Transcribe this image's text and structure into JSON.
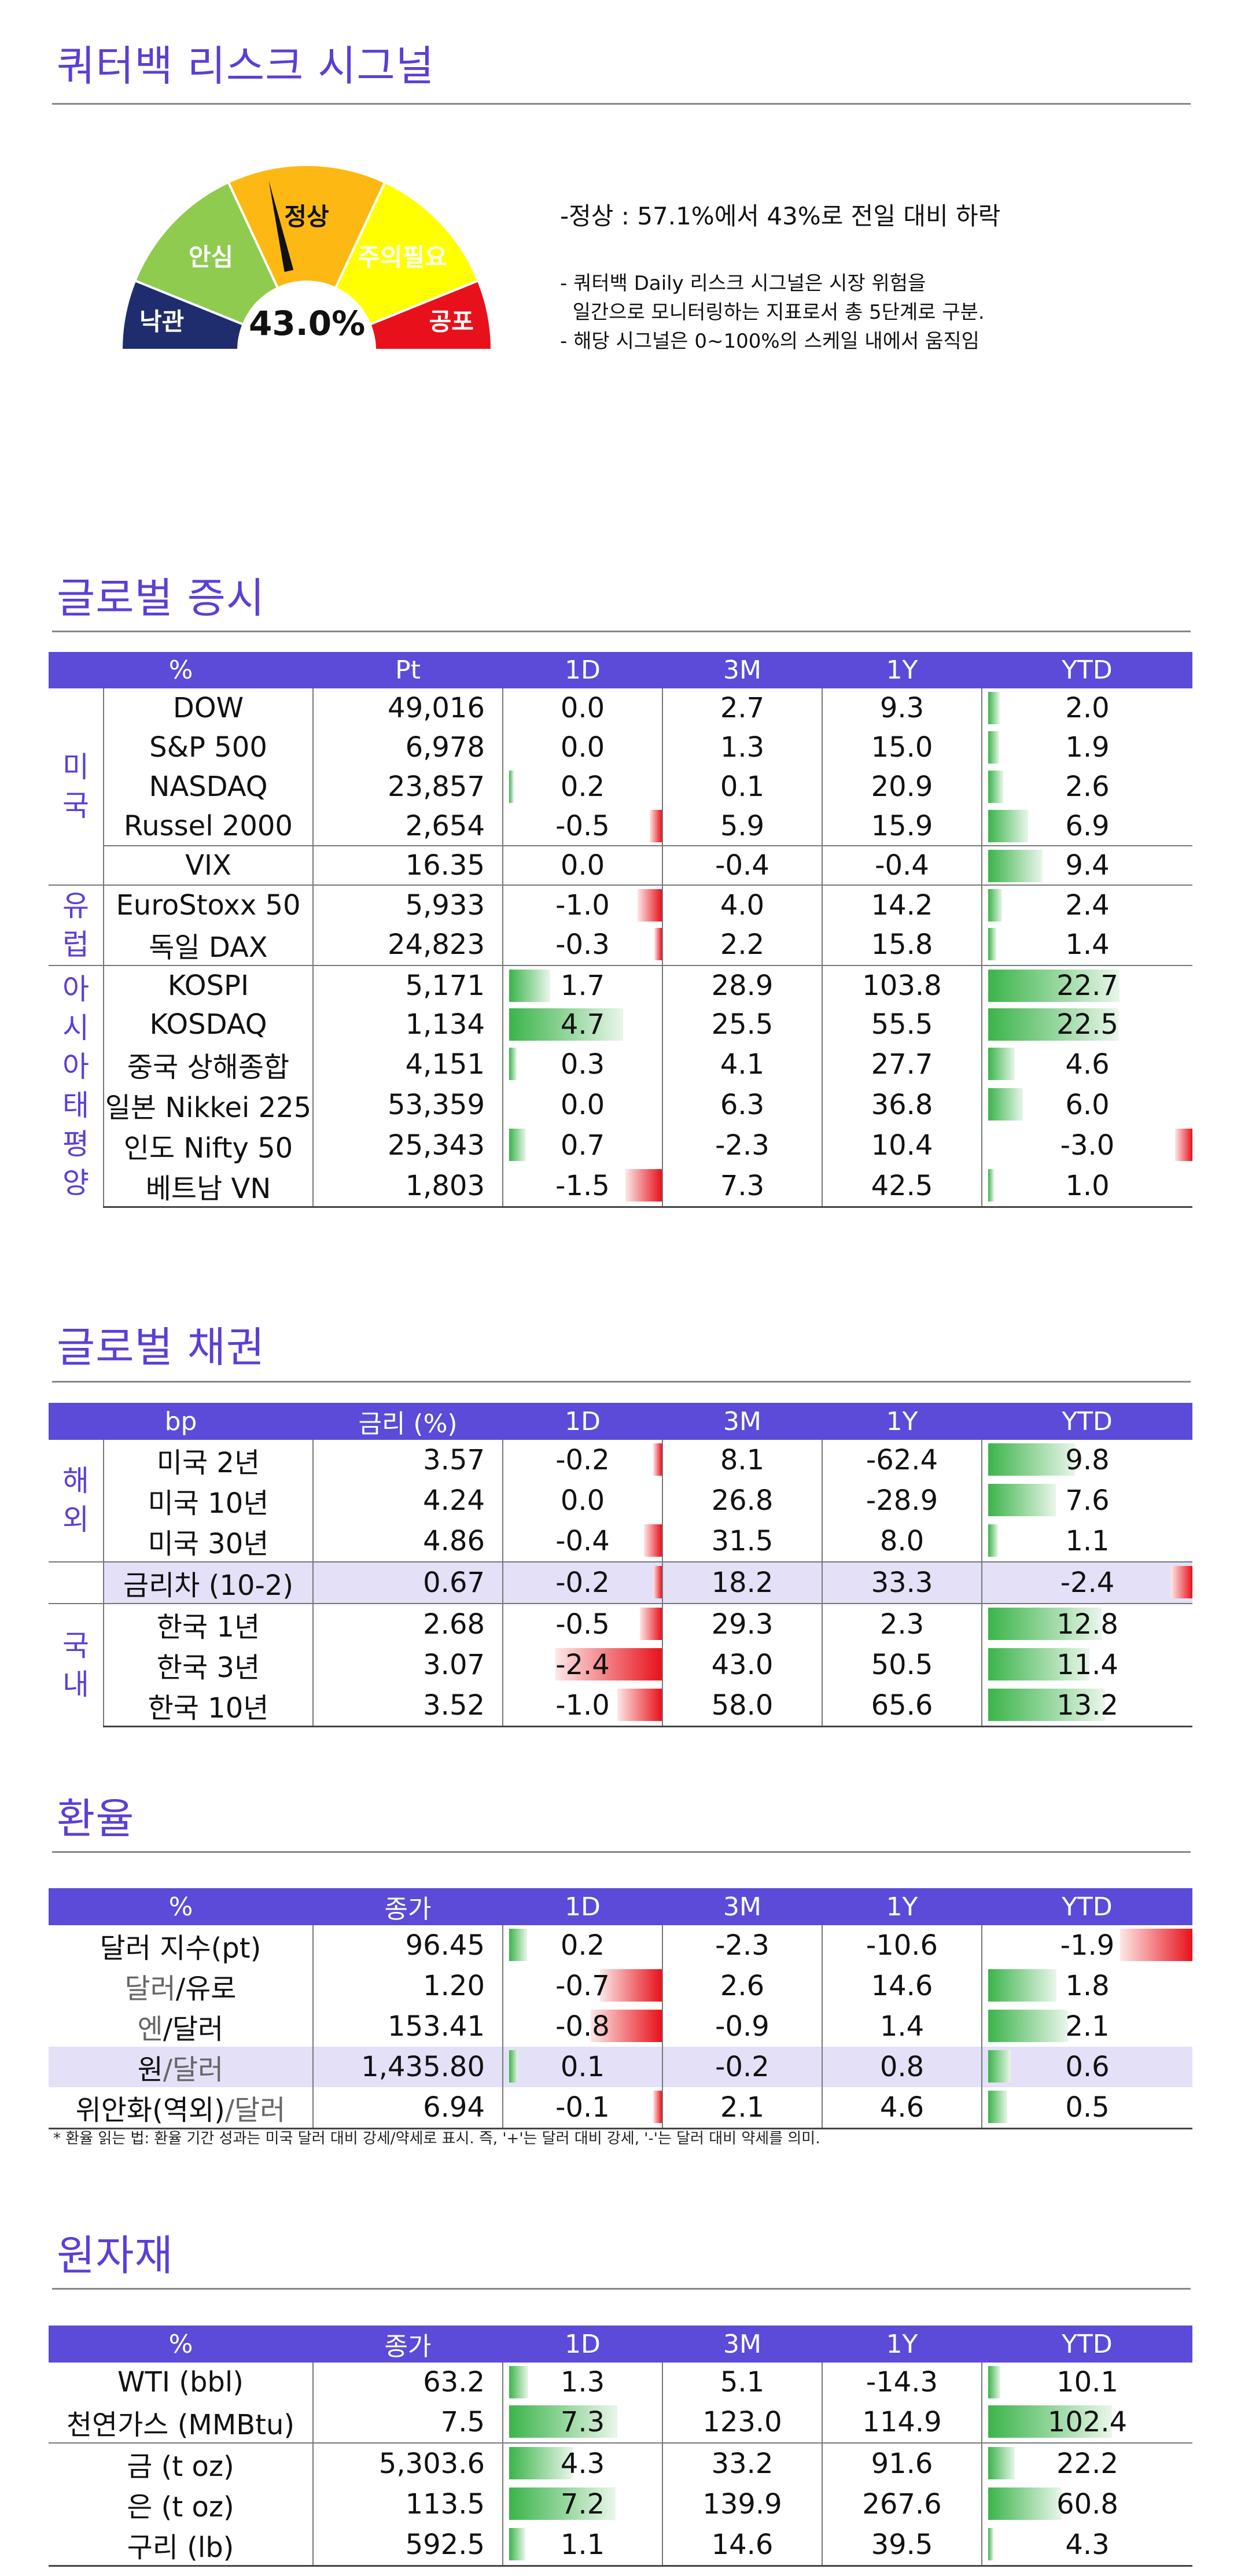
{
  "signal": {
    "title": "쿼터백 리스크 시그널",
    "value": "43.0%",
    "levels": [
      "낙관",
      "안심",
      "정상",
      "주의필요",
      "공포"
    ],
    "lead": "-정상 : 57.1%에서 43%로 전일 대비 하락",
    "notes": [
      "- 쿼터백 Daily 리스크 시그널은 시장 위험을",
      "  일간으로 모니터링하는 지표로서 총 5단계로 구분.",
      "- 해당 시그널은 0~100%의 스케일 내에서 움직임"
    ],
    "colors": {
      "낙관": "#1f2d6e",
      "안심": "#8fcb4f",
      "정상": "#fdb813",
      "주의필요": "#ffff00",
      "공포": "#e8111b"
    }
  },
  "equity": {
    "title": "글로벌 증시",
    "headers": [
      "%",
      "Pt",
      "1D",
      "3M",
      "1Y",
      "YTD"
    ],
    "groups": [
      {
        "label": [
          "미",
          "국"
        ],
        "rows": [
          {
            "name": "DOW",
            "pt": "49,016",
            "d1": "0.0",
            "m3": "2.7",
            "y1": "9.3",
            "ytd": "2.0"
          },
          {
            "name": "S&P 500",
            "pt": "6,978",
            "d1": "0.0",
            "m3": "1.3",
            "y1": "15.0",
            "ytd": "1.9"
          },
          {
            "name": "NASDAQ",
            "pt": "23,857",
            "d1": "0.2",
            "m3": "0.1",
            "y1": "20.9",
            "ytd": "2.6"
          },
          {
            "name": "Russel 2000",
            "pt": "2,654",
            "d1": "-0.5",
            "m3": "5.9",
            "y1": "15.9",
            "ytd": "6.9"
          },
          {
            "name": "VIX",
            "pt": "16.35",
            "d1": "0.0",
            "m3": "-0.4",
            "y1": "-0.4",
            "ytd": "9.4"
          }
        ]
      },
      {
        "label": [
          "유",
          "럽"
        ],
        "rows": [
          {
            "name": "EuroStoxx 50",
            "pt": "5,933",
            "d1": "-1.0",
            "m3": "4.0",
            "y1": "14.2",
            "ytd": "2.4"
          },
          {
            "name": "독일 DAX",
            "pt": "24,823",
            "d1": "-0.3",
            "m3": "2.2",
            "y1": "15.8",
            "ytd": "1.4"
          }
        ]
      },
      {
        "label": [
          "아",
          "시",
          "아",
          "태",
          "평",
          "양"
        ],
        "rows": [
          {
            "name": "KOSPI",
            "pt": "5,171",
            "d1": "1.7",
            "m3": "28.9",
            "y1": "103.8",
            "ytd": "22.7"
          },
          {
            "name": "KOSDAQ",
            "pt": "1,134",
            "d1": "4.7",
            "m3": "25.5",
            "y1": "55.5",
            "ytd": "22.5"
          },
          {
            "name": "중국 상해종합",
            "pt": "4,151",
            "d1": "0.3",
            "m3": "4.1",
            "y1": "27.7",
            "ytd": "4.6"
          },
          {
            "name": "일본 Nikkei 225",
            "pt": "53,359",
            "d1": "0.0",
            "m3": "6.3",
            "y1": "36.8",
            "ytd": "6.0"
          },
          {
            "name": "인도 Nifty 50",
            "pt": "25,343",
            "d1": "0.7",
            "m3": "-2.3",
            "y1": "10.4",
            "ytd": "-3.0"
          },
          {
            "name": "베트남 VN",
            "pt": "1,803",
            "d1": "-1.5",
            "m3": "7.3",
            "y1": "42.5",
            "ytd": "1.0"
          }
        ]
      }
    ]
  },
  "bonds": {
    "title": "글로벌 채권",
    "headers": [
      "bp",
      "금리 (%)",
      "1D",
      "3M",
      "1Y",
      "YTD"
    ],
    "groups": [
      {
        "label": [
          "해",
          "외"
        ],
        "rows": [
          {
            "name": "미국 2년",
            "pt": "3.57",
            "d1": "-0.2",
            "m3": "8.1",
            "y1": "-62.4",
            "ytd": "9.8"
          },
          {
            "name": "미국 10년",
            "pt": "4.24",
            "d1": "0.0",
            "m3": "26.8",
            "y1": "-28.9",
            "ytd": "7.6"
          },
          {
            "name": "미국 30년",
            "pt": "4.86",
            "d1": "-0.4",
            "m3": "31.5",
            "y1": "8.0",
            "ytd": "1.1"
          }
        ]
      },
      {
        "label": [],
        "highlight": true,
        "rows": [
          {
            "name": "금리차 (10-2)",
            "pt": "0.67",
            "d1": "-0.2",
            "m3": "18.2",
            "y1": "33.3",
            "ytd": "-2.4"
          }
        ]
      },
      {
        "label": [
          "국",
          "내"
        ],
        "rows": [
          {
            "name": "한국 1년",
            "pt": "2.68",
            "d1": "-0.5",
            "m3": "29.3",
            "y1": "2.3",
            "ytd": "12.8"
          },
          {
            "name": "한국 3년",
            "pt": "3.07",
            "d1": "-2.4",
            "m3": "43.0",
            "y1": "50.5",
            "ytd": "11.4"
          },
          {
            "name": "한국 10년",
            "pt": "3.52",
            "d1": "-1.0",
            "m3": "58.0",
            "y1": "65.6",
            "ytd": "13.2"
          }
        ]
      }
    ]
  },
  "fx": {
    "title": "환율",
    "headers": [
      "%",
      "종가",
      "1D",
      "3M",
      "1Y",
      "YTD"
    ],
    "rows": [
      {
        "name": "달러 지수(pt)",
        "base": "달러 지수(pt)",
        "quote": "",
        "pt": "96.45",
        "d1": "0.2",
        "m3": "-2.3",
        "y1": "-10.6",
        "ytd": "-1.9"
      },
      {
        "name": "달러/유로",
        "base": "달러",
        "quote": "/유로",
        "pt": "1.20",
        "d1": "-0.7",
        "m3": "2.6",
        "y1": "14.6",
        "ytd": "1.8"
      },
      {
        "name": "엔/달러",
        "base": "엔",
        "quote": "/달러",
        "pt": "153.41",
        "d1": "-0.8",
        "m3": "-0.9",
        "y1": "1.4",
        "ytd": "2.1"
      },
      {
        "name": "원/달러",
        "base": "원",
        "quote": "/달러",
        "pt": "1,435.80",
        "d1": "0.1",
        "m3": "-0.2",
        "y1": "0.8",
        "ytd": "0.6",
        "highlight": true
      },
      {
        "name": "위안화(역외)/달러",
        "base": "위안화(역외)",
        "quote": "/달러",
        "pt": "6.94",
        "d1": "-0.1",
        "m3": "2.1",
        "y1": "4.6",
        "ytd": "0.5"
      }
    ],
    "footnote": "* 환율 읽는 법: 환율 기간 성과는 미국 달러 대비 강세/약세로 표시. 즉, '+'는 달러 대비 강세, '-'는 달러 대비 약세를 의미."
  },
  "commodities": {
    "title": "원자재",
    "headers": [
      "%",
      "종가",
      "1D",
      "3M",
      "1Y",
      "YTD"
    ],
    "rows": [
      {
        "name": "WTI (bbl)",
        "pt": "63.2",
        "d1": "1.3",
        "m3": "5.1",
        "y1": "-14.3",
        "ytd": "10.1"
      },
      {
        "name": "천연가스 (MMBtu)",
        "pt": "7.5",
        "d1": "7.3",
        "m3": "123.0",
        "y1": "114.9",
        "ytd": "102.4"
      },
      {
        "name": "금 (t oz)",
        "pt": "5,303.6",
        "d1": "4.3",
        "m3": "33.2",
        "y1": "91.6",
        "ytd": "22.2"
      },
      {
        "name": "은 (t oz)",
        "pt": "113.5",
        "d1": "7.2",
        "m3": "139.9",
        "y1": "267.6",
        "ytd": "60.8"
      },
      {
        "name": "구리 (lb)",
        "pt": "592.5",
        "d1": "1.1",
        "m3": "14.6",
        "y1": "39.5",
        "ytd": "4.3"
      }
    ]
  }
}
